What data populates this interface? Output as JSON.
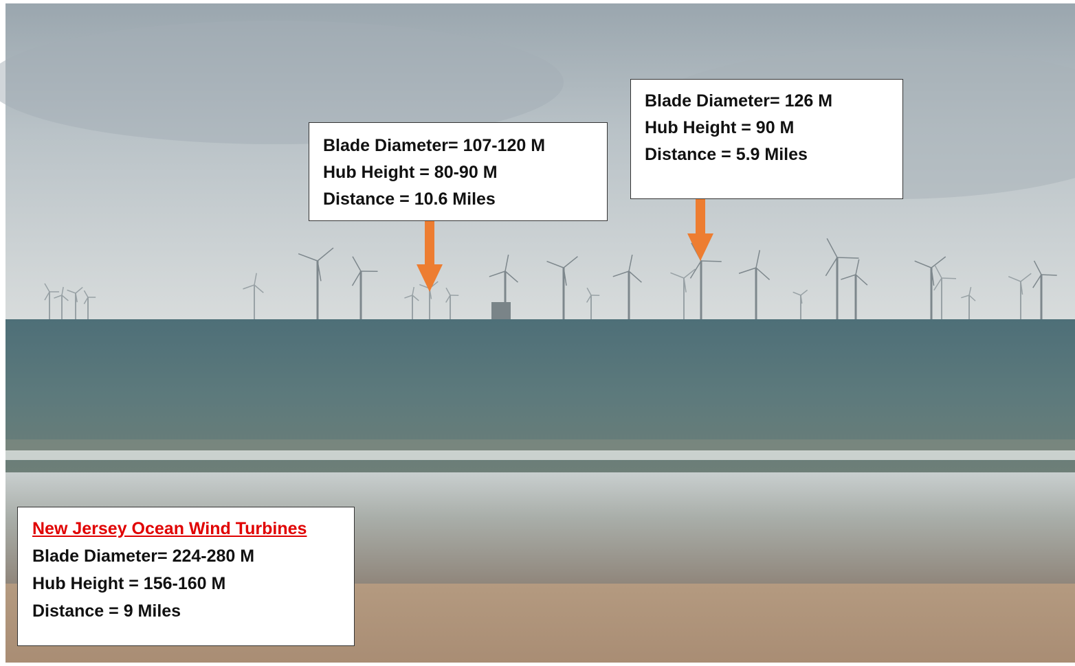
{
  "callouts": [
    {
      "lines": [
        "Blade Diameter= 107-120 M",
        "Hub Height = 80-90 M",
        "Distance = 10.6 Miles"
      ]
    },
    {
      "lines": [
        "Blade Diameter= 126 M",
        "Hub Height = 90 M",
        "Distance = 5.9 Miles"
      ]
    }
  ],
  "legend": {
    "title": "New Jersey Ocean Wind Turbines",
    "lines": [
      "Blade Diameter= 224-280 M",
      "Hub Height = 156-160 M",
      "Distance = 9 Miles"
    ]
  }
}
